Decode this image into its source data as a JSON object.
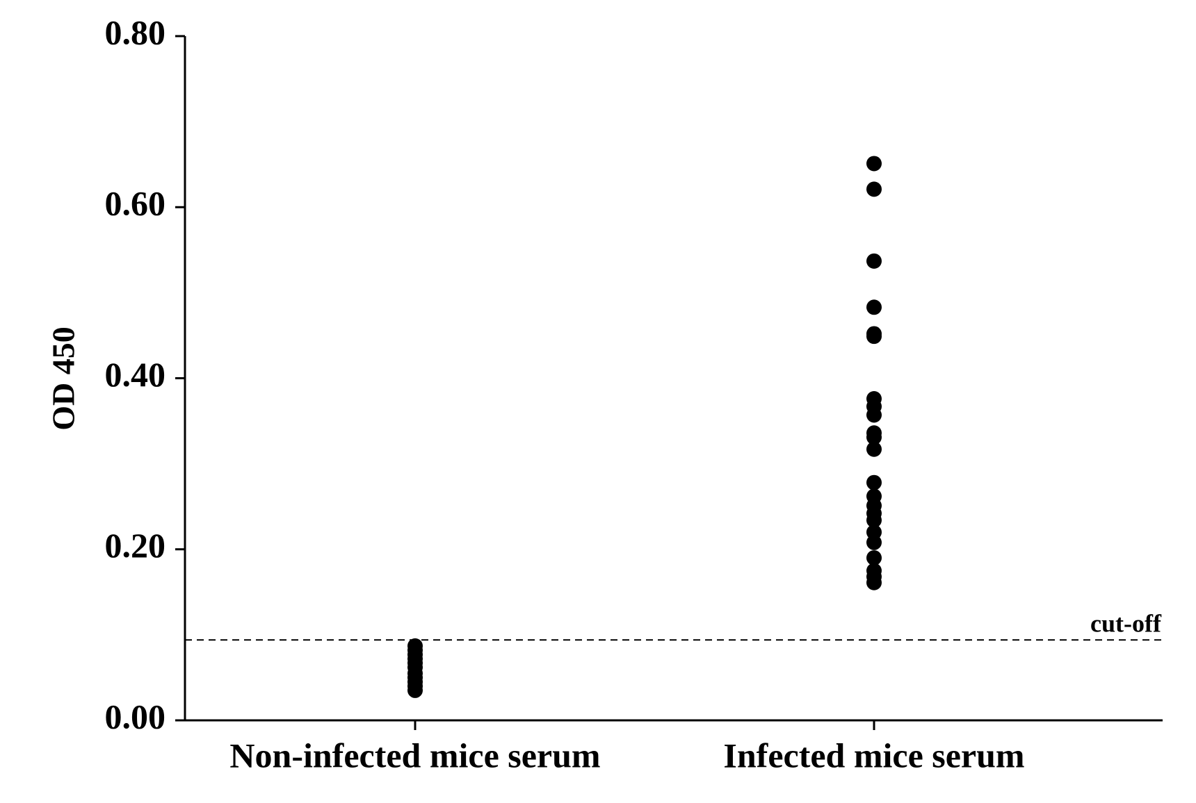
{
  "chart_data": {
    "type": "strip",
    "y_label": "OD 450",
    "categories": [
      "Non-infected mice serum",
      "Infected mice serum"
    ],
    "values": [
      [
        0.087,
        0.082,
        0.077,
        0.072,
        0.067,
        0.062,
        0.055,
        0.05,
        0.045,
        0.04,
        0.035
      ],
      [
        0.651,
        0.621,
        0.537,
        0.483,
        0.452,
        0.449,
        0.376,
        0.367,
        0.357,
        0.336,
        0.331,
        0.317,
        0.278,
        0.262,
        0.251,
        0.242,
        0.234,
        0.22,
        0.208,
        0.19,
        0.175,
        0.168,
        0.161
      ]
    ],
    "color": "#000000",
    "ylim": [
      0,
      0.8
    ],
    "yticks": [
      {
        "value": 0,
        "label": "0.00"
      },
      {
        "value": 0.2,
        "label": "0.20"
      },
      {
        "value": 0.4,
        "label": "0.40"
      },
      {
        "value": 0.6,
        "label": "0.60"
      },
      {
        "value": 0.8,
        "label": "0.80"
      }
    ],
    "reference_line": {
      "value": 0.094,
      "label": "cut-off",
      "style": "dashed"
    }
  }
}
